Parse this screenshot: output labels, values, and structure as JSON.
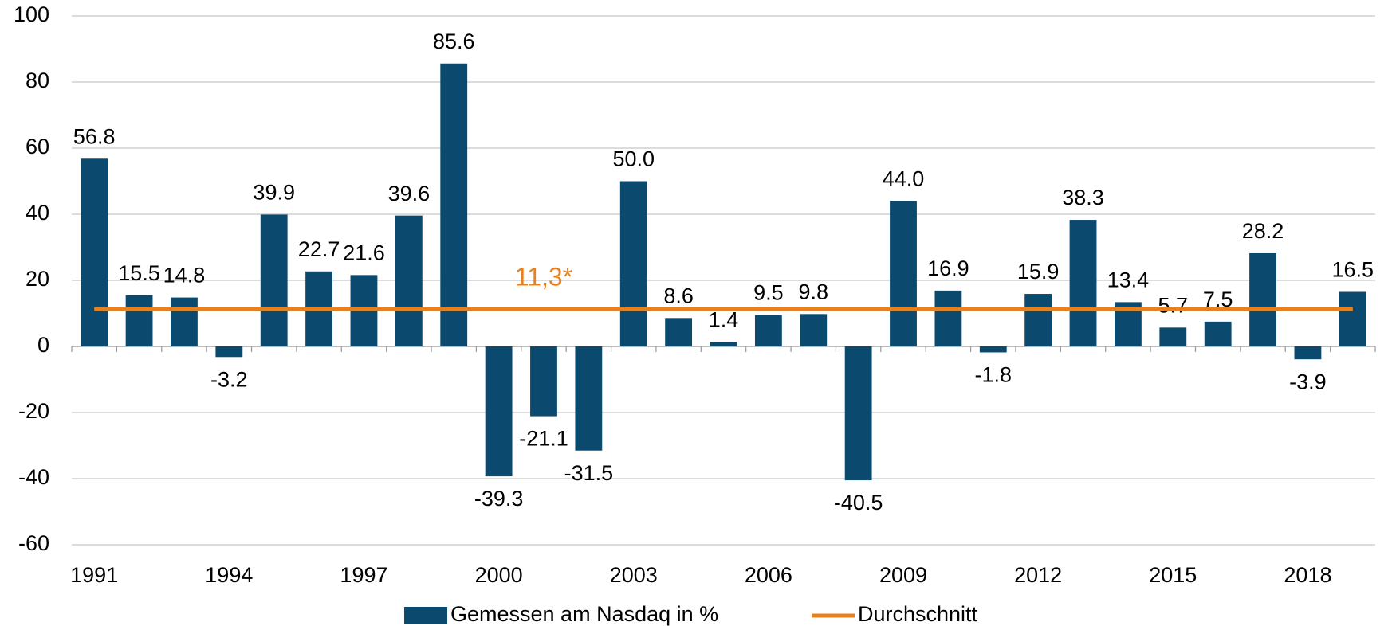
{
  "chart_data": {
    "type": "bar",
    "categories": [
      "1991",
      null,
      null,
      "1994",
      null,
      null,
      "1997",
      null,
      null,
      "2000",
      null,
      null,
      "2003",
      null,
      null,
      "2006",
      null,
      null,
      "2009",
      null,
      null,
      "2012",
      null,
      null,
      "2015",
      null,
      null,
      "2018",
      null
    ],
    "series": [
      {
        "name": "Gemessen am Nasdaq in %",
        "color": "#0b4a6e",
        "values": [
          56.8,
          15.5,
          14.8,
          -3.2,
          39.9,
          22.7,
          21.6,
          39.6,
          85.6,
          -39.3,
          -21.1,
          -31.5,
          50.0,
          8.6,
          1.4,
          9.5,
          9.8,
          -40.5,
          44.0,
          16.9,
          -1.8,
          15.9,
          38.3,
          13.4,
          5.7,
          7.5,
          28.2,
          -3.9,
          16.5
        ],
        "value_labels": [
          "56.8",
          "15.5",
          "14.8",
          "-3.2",
          "39.9",
          "22.7",
          "21.6",
          "39.6",
          "85.6",
          "-39.3",
          "-21.1",
          "-31.5",
          "50.0",
          "8.6",
          "1.4",
          "9.5",
          "9.8",
          "-40.5",
          "44.0",
          "16.9",
          "-1.8",
          "15.9",
          "38.3",
          "13.4",
          "5.7",
          "7.5",
          "28.2",
          "-3.9",
          "16.5"
        ]
      }
    ],
    "average": {
      "name": "Durchschnitt",
      "value": 11.3,
      "label": "11,3*",
      "color": "#e8801e"
    },
    "ylim": [
      -60,
      100
    ],
    "yticks": [
      -60,
      -40,
      -20,
      0,
      20,
      40,
      60,
      80,
      100
    ],
    "grid": true
  }
}
